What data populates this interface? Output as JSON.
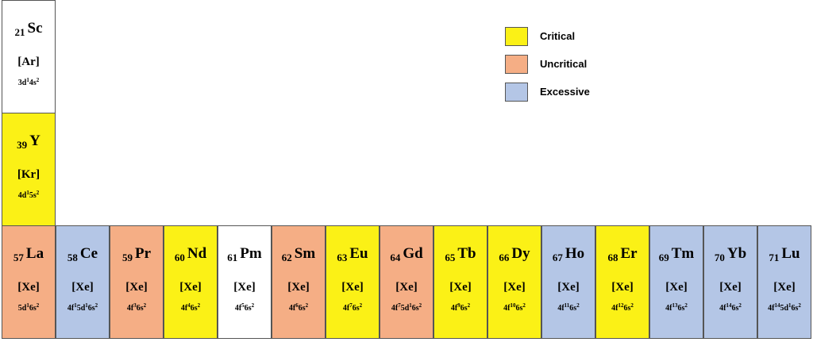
{
  "colors": {
    "critical": "#fbf116",
    "uncritical": "#f5ae85",
    "excessive": "#b4c6e6",
    "none": "#ffffff"
  },
  "legend": [
    {
      "label": "Critical",
      "category": "critical"
    },
    {
      "label": "Uncritical",
      "category": "uncritical"
    },
    {
      "label": "Excessive",
      "category": "excessive"
    }
  ],
  "elements": [
    {
      "num": "21",
      "sym": "Sc",
      "core": "[Ar]",
      "conf": "3d<sup>1</sup>4s<sup>2</sup>",
      "category": "none"
    },
    {
      "num": "39",
      "sym": "Y",
      "core": "[Kr]",
      "conf": "4d<sup>1</sup>5s<sup>2</sup>",
      "category": "critical"
    },
    {
      "num": "57",
      "sym": "La",
      "core": "[Xe]",
      "conf": "5d<sup>1</sup>6s<sup>2</sup>",
      "category": "uncritical"
    },
    {
      "num": "58",
      "sym": "Ce",
      "core": "[Xe]",
      "conf": "4f<sup>1</sup>5d<sup>1</sup>6s<sup>2</sup>",
      "category": "excessive"
    },
    {
      "num": "59",
      "sym": "Pr",
      "core": "[Xe]",
      "conf": "4f<sup>3</sup>6s<sup>2</sup>",
      "category": "uncritical"
    },
    {
      "num": "60",
      "sym": "Nd",
      "core": "[Xe]",
      "conf": "4f<sup>4</sup>6s<sup>2</sup>",
      "category": "critical"
    },
    {
      "num": "61",
      "sym": "Pm",
      "core": "[Xe]",
      "conf": "4f<sup>5</sup>6s<sup>2</sup>",
      "category": "none"
    },
    {
      "num": "62",
      "sym": "Sm",
      "core": "[Xe]",
      "conf": "4f<sup>6</sup>6s<sup>2</sup>",
      "category": "uncritical"
    },
    {
      "num": "63",
      "sym": "Eu",
      "core": "[Xe]",
      "conf": "4f<sup>7</sup>6s<sup>2</sup>",
      "category": "critical"
    },
    {
      "num": "64",
      "sym": "Gd",
      "core": "[Xe]",
      "conf": "4f<sup>7</sup>5d<sup>1</sup>6s<sup>2</sup>",
      "category": "uncritical"
    },
    {
      "num": "65",
      "sym": "Tb",
      "core": "[Xe]",
      "conf": "4f<sup>9</sup>6s<sup>2</sup>",
      "category": "critical"
    },
    {
      "num": "66",
      "sym": "Dy",
      "core": "[Xe]",
      "conf": "4f<sup>10</sup>6s<sup>2</sup>",
      "category": "critical"
    },
    {
      "num": "67",
      "sym": "Ho",
      "core": "[Xe]",
      "conf": "4f<sup>11</sup>6s<sup>2</sup>",
      "category": "excessive"
    },
    {
      "num": "68",
      "sym": "Er",
      "core": "[Xe]",
      "conf": "4f<sup>12</sup>6s<sup>2</sup>",
      "category": "critical"
    },
    {
      "num": "69",
      "sym": "Tm",
      "core": "[Xe]",
      "conf": "4f<sup>13</sup>6s<sup>2</sup>",
      "category": "excessive"
    },
    {
      "num": "70",
      "sym": "Yb",
      "core": "[Xe]",
      "conf": "4f<sup>14</sup>6s<sup>2</sup>",
      "category": "excessive"
    },
    {
      "num": "71",
      "sym": "Lu",
      "core": "[Xe]",
      "conf": "4f<sup>14</sup>5d<sup>1</sup>6s<sup>2</sup>",
      "category": "excessive"
    }
  ]
}
